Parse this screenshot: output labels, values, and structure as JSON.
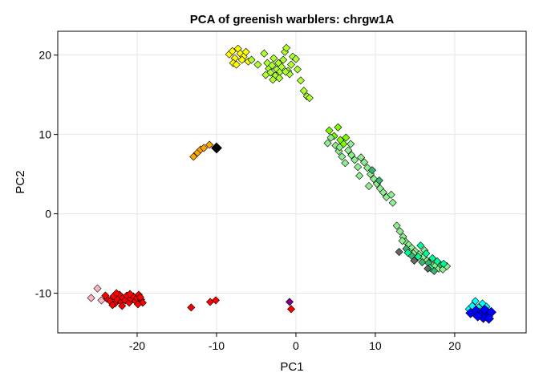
{
  "chart_data": {
    "type": "scatter",
    "title": "PCA of greenish warblers: chrgw1A",
    "xlabel": "PC1",
    "ylabel": "PC2",
    "xlim": [
      -30,
      29
    ],
    "ylim": [
      -15,
      23
    ],
    "xticks": [
      -20,
      -10,
      0,
      10,
      20
    ],
    "yticks": [
      -10,
      0,
      10,
      20
    ],
    "grid": true,
    "marker": "diamond",
    "series": [
      {
        "color": "#ffb6c1",
        "points": [
          [
            -25.8,
            -10.6
          ],
          [
            -25.0,
            -9.4
          ],
          [
            -24.5,
            -10.9
          ]
        ]
      },
      {
        "color": "#ff0000",
        "points": [
          [
            -23.8,
            -10.7
          ],
          [
            -23.4,
            -11.0
          ],
          [
            -23.0,
            -10.4
          ],
          [
            -22.8,
            -11.3
          ],
          [
            -22.5,
            -10.8
          ],
          [
            -22.2,
            -10.2
          ],
          [
            -22.0,
            -11.1
          ],
          [
            -21.8,
            -10.6
          ],
          [
            -21.5,
            -10.9
          ],
          [
            -21.3,
            -10.3
          ],
          [
            -21.0,
            -11.2
          ],
          [
            -20.8,
            -10.7
          ],
          [
            -20.5,
            -10.4
          ],
          [
            -20.2,
            -11.0
          ],
          [
            -20.0,
            -10.6
          ],
          [
            -19.8,
            -10.2
          ],
          [
            -19.5,
            -10.8
          ],
          [
            -19.3,
            -11.2
          ],
          [
            -23.1,
            -11.5
          ],
          [
            -22.6,
            -10.0
          ],
          [
            -21.9,
            -11.6
          ],
          [
            -20.9,
            -10.1
          ],
          [
            -19.9,
            -11.4
          ],
          [
            -19.6,
            -10.5
          ],
          [
            -24.0,
            -10.3
          ],
          [
            -13.2,
            -11.8
          ],
          [
            -10.8,
            -11.1
          ],
          [
            -10.1,
            -10.9
          ],
          [
            -0.6,
            -12.0
          ]
        ]
      },
      {
        "color": "#800080",
        "points": [
          [
            -0.8,
            -11.1
          ]
        ]
      },
      {
        "color": "#ffa500",
        "points": [
          [
            -12.9,
            7.2
          ],
          [
            -12.4,
            7.7
          ],
          [
            -12.0,
            8.1
          ],
          [
            -11.6,
            8.3
          ],
          [
            -10.9,
            8.7
          ]
        ]
      },
      {
        "color": "#000000",
        "size": 6.5,
        "points": [
          [
            -10.0,
            8.3
          ]
        ]
      },
      {
        "color": "#ffff00",
        "points": [
          [
            -8.4,
            20.1
          ],
          [
            -8.0,
            20.5
          ],
          [
            -7.7,
            19.6
          ],
          [
            -7.3,
            20.8
          ],
          [
            -7.0,
            20.2
          ],
          [
            -6.6,
            19.8
          ],
          [
            -6.3,
            20.4
          ],
          [
            -6.0,
            19.2
          ],
          [
            -7.9,
            19.0
          ],
          [
            -7.5,
            18.8
          ],
          [
            -6.8,
            19.4
          ]
        ]
      },
      {
        "color": "#adff2f",
        "points": [
          [
            -5.6,
            19.4
          ],
          [
            -4.8,
            18.8
          ],
          [
            -4.0,
            20.2
          ],
          [
            -3.6,
            19.0
          ],
          [
            -3.4,
            18.3
          ],
          [
            -3.2,
            17.8
          ],
          [
            -3.0,
            18.7
          ],
          [
            -2.8,
            19.6
          ],
          [
            -2.6,
            17.4
          ],
          [
            -2.4,
            18.2
          ],
          [
            -2.2,
            19.0
          ],
          [
            -2.0,
            17.9
          ],
          [
            -1.8,
            18.5
          ],
          [
            -1.6,
            19.4
          ],
          [
            -1.4,
            20.4
          ],
          [
            -1.2,
            20.9
          ],
          [
            -1.0,
            18.0
          ],
          [
            -0.8,
            17.6
          ],
          [
            -0.6,
            18.8
          ],
          [
            -0.4,
            19.8
          ],
          [
            -3.8,
            17.5
          ],
          [
            -2.9,
            16.9
          ],
          [
            -2.1,
            17.1
          ],
          [
            -1.3,
            17.9
          ],
          [
            0.2,
            18.2
          ],
          [
            0.0,
            19.5
          ],
          [
            0.6,
            16.8
          ],
          [
            1.0,
            15.5
          ],
          [
            1.4,
            14.8
          ],
          [
            1.7,
            14.6
          ]
        ]
      },
      {
        "color": "#7cfc00",
        "points": [
          [
            4.2,
            10.5
          ],
          [
            4.8,
            9.8
          ],
          [
            5.3,
            10.9
          ],
          [
            5.6,
            9.3
          ],
          [
            6.0,
            8.8
          ],
          [
            6.3,
            9.6
          ]
        ]
      },
      {
        "color": "#90ee90",
        "points": [
          [
            4.4,
            9.6
          ],
          [
            5.0,
            8.6
          ],
          [
            5.4,
            7.9
          ],
          [
            5.8,
            7.2
          ],
          [
            6.2,
            6.4
          ],
          [
            6.6,
            8.0
          ],
          [
            7.0,
            7.4
          ],
          [
            7.4,
            6.8
          ],
          [
            7.8,
            5.9
          ],
          [
            8.2,
            7.1
          ],
          [
            8.6,
            6.5
          ],
          [
            9.0,
            5.8
          ],
          [
            9.4,
            5.0
          ],
          [
            9.8,
            4.4
          ],
          [
            10.2,
            3.8
          ],
          [
            10.6,
            3.2
          ],
          [
            11.0,
            2.7
          ],
          [
            11.4,
            2.1
          ],
          [
            12.0,
            2.4
          ],
          [
            12.2,
            1.4
          ],
          [
            8.0,
            4.8
          ],
          [
            9.2,
            3.5
          ],
          [
            5.5,
            8.4
          ],
          [
            6.9,
            8.8
          ],
          [
            4.0,
            8.9
          ],
          [
            12.7,
            -1.5
          ],
          [
            13.1,
            -2.2
          ],
          [
            13.5,
            -2.9
          ],
          [
            13.8,
            -3.5
          ],
          [
            14.2,
            -3.9
          ],
          [
            14.6,
            -4.3
          ],
          [
            15.0,
            -4.7
          ],
          [
            15.5,
            -5.1
          ],
          [
            16.0,
            -5.5
          ],
          [
            16.5,
            -5.9
          ],
          [
            17.0,
            -6.3
          ],
          [
            17.5,
            -6.6
          ],
          [
            18.0,
            -6.9
          ],
          [
            18.5,
            -7.0
          ],
          [
            19.0,
            -6.6
          ],
          [
            13.4,
            -3.4
          ],
          [
            14.8,
            -5.0
          ],
          [
            16.2,
            -4.6
          ]
        ]
      },
      {
        "color": "#3cb371",
        "points": [
          [
            9.6,
            5.5
          ],
          [
            10.5,
            4.2
          ],
          [
            13.9,
            -4.4
          ],
          [
            14.6,
            -5.3
          ],
          [
            15.2,
            -5.6
          ],
          [
            15.9,
            -6.1
          ],
          [
            16.7,
            -6.2
          ],
          [
            17.4,
            -7.2
          ],
          [
            18.2,
            -6.4
          ]
        ]
      },
      {
        "color": "#00fa9a",
        "points": [
          [
            14.1,
            -4.9
          ],
          [
            15.4,
            -5.4
          ],
          [
            16.4,
            -5.0
          ],
          [
            17.2,
            -5.6
          ],
          [
            17.8,
            -6.0
          ],
          [
            18.6,
            -6.3
          ],
          [
            15.7,
            -4.0
          ],
          [
            16.9,
            -6.8
          ]
        ]
      },
      {
        "color": "#666666",
        "points": [
          [
            13.0,
            -4.8
          ],
          [
            14.9,
            -5.9
          ],
          [
            16.6,
            -6.9
          ]
        ]
      },
      {
        "color": "#00ffff",
        "points": [
          [
            21.8,
            -12.0
          ],
          [
            22.2,
            -11.6
          ],
          [
            22.6,
            -11.0
          ],
          [
            23.0,
            -11.8
          ],
          [
            23.5,
            -11.3
          ],
          [
            22.4,
            -12.5
          ],
          [
            23.2,
            -12.3
          ],
          [
            24.0,
            -11.7
          ]
        ]
      },
      {
        "color": "#0000ff",
        "size": 6.0,
        "points": [
          [
            22.0,
            -12.5
          ],
          [
            22.7,
            -12.2
          ],
          [
            23.3,
            -12.7
          ],
          [
            23.8,
            -12.1
          ],
          [
            24.2,
            -12.9
          ],
          [
            24.6,
            -12.4
          ],
          [
            23.6,
            -13.1
          ],
          [
            24.3,
            -13.2
          ],
          [
            22.9,
            -12.9
          ]
        ]
      }
    ]
  }
}
